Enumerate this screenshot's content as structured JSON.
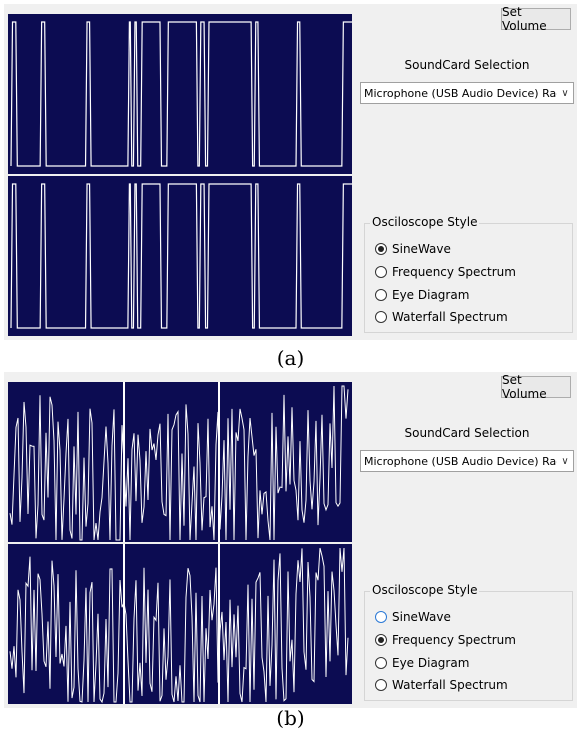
{
  "panels": [
    {
      "caption": "(a)",
      "set_volume_label": "Set Volume",
      "soundcard_label": "SoundCard Selection",
      "device_selected": "Microphone (USB Audio Device) RadioF",
      "style_group_title": "Osciloscope Style",
      "options": [
        {
          "label": "SineWave",
          "checked": true
        },
        {
          "label": "Frequency Spectrum",
          "checked": false
        },
        {
          "label": "Eye Diagram",
          "checked": false
        },
        {
          "label": "Waterfall Spectrum",
          "checked": false
        }
      ],
      "trace_type": "square-wave"
    },
    {
      "caption": "(b)",
      "set_volume_label": "Set Volume",
      "soundcard_label": "SoundCard Selection",
      "device_selected": "Microphone (USB Audio Device) RadioF",
      "style_group_title": "Osciloscope Style",
      "options": [
        {
          "label": "SineWave",
          "checked": false
        },
        {
          "label": "Frequency Spectrum",
          "checked": true
        },
        {
          "label": "Eye Diagram",
          "checked": false
        },
        {
          "label": "Waterfall Spectrum",
          "checked": false
        }
      ],
      "trace_type": "spectrum"
    }
  ],
  "colors": {
    "scope_background": "#0c0c52",
    "trace": "#ffffff",
    "window_background": "#f0f0f0"
  },
  "icons": [
    "chevron-down-icon",
    "radio-button-icon"
  ]
}
